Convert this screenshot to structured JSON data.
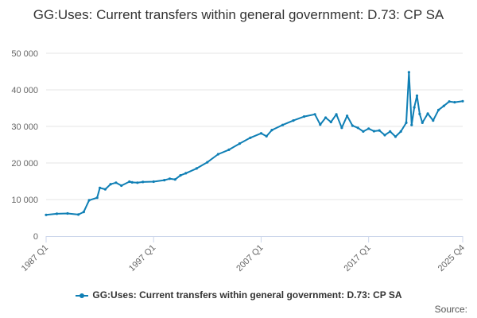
{
  "title": "GG:Uses: Current transfers within general government: D.73: CP SA",
  "source_label": "Source:",
  "colors": {
    "series": "#0f7fb5",
    "grid": "#e6e6e6",
    "axis": "#ccd6eb",
    "text": "#666666"
  },
  "chart_data": {
    "type": "line",
    "title": "GG:Uses: Current transfers within general government: D.73: CP SA",
    "xlabel": "",
    "ylabel": "",
    "ylim": [
      0,
      50000
    ],
    "y_ticks": [
      0,
      10000,
      20000,
      30000,
      40000,
      50000
    ],
    "y_tick_labels": [
      "0",
      "10 000",
      "20 000",
      "30 000",
      "40 000",
      "50 000"
    ],
    "x_ticks": [
      1987,
      1997,
      2007,
      2017,
      2025.75
    ],
    "x_tick_labels": [
      "1987 Q1",
      "1997 Q1",
      "2007 Q1",
      "2017 Q1",
      "2025 Q4"
    ],
    "xlim": [
      1987,
      2025.75
    ],
    "grid": true,
    "legend": "bottom",
    "series": [
      {
        "name": "GG:Uses: Current transfers within general government: D.73: CP SA",
        "color": "#0f7fb5",
        "x": [
          1987,
          1988,
          1989,
          1990,
          1990.5,
          1991,
          1991.75,
          1992,
          1992.5,
          1993,
          1993.5,
          1994,
          1994.75,
          1995,
          1995.5,
          1996,
          1997,
          1998,
          1998.5,
          1999,
          1999.5,
          2000,
          2001,
          2002,
          2003,
          2004,
          2005,
          2006,
          2007,
          2007.5,
          2008,
          2009,
          2010,
          2011,
          2012,
          2012.5,
          2013,
          2013.5,
          2014,
          2014.5,
          2015,
          2015.5,
          2016,
          2016.5,
          2017,
          2017.5,
          2018,
          2018.5,
          2019,
          2019.5,
          2020,
          2020.5,
          2020.75,
          2021,
          2021.25,
          2021.5,
          2021.75,
          2022,
          2022.5,
          2023,
          2023.5,
          2024,
          2024.5,
          2025,
          2025.75
        ],
        "y": [
          5800,
          6100,
          6200,
          5900,
          6600,
          9800,
          10500,
          13200,
          12800,
          14200,
          14600,
          13800,
          14900,
          14700,
          14600,
          14800,
          14900,
          15300,
          15700,
          15500,
          16600,
          17200,
          18500,
          20200,
          22400,
          23600,
          25300,
          26900,
          28100,
          27300,
          29000,
          30400,
          31600,
          32700,
          33300,
          30500,
          32400,
          31200,
          33300,
          29600,
          32900,
          30200,
          29600,
          28600,
          29400,
          28700,
          28900,
          27600,
          28600,
          27200,
          28600,
          31000,
          44800,
          30400,
          35200,
          38400,
          33400,
          31000,
          33500,
          31600,
          34500,
          35600,
          36800,
          36600,
          36900
        ]
      }
    ]
  }
}
